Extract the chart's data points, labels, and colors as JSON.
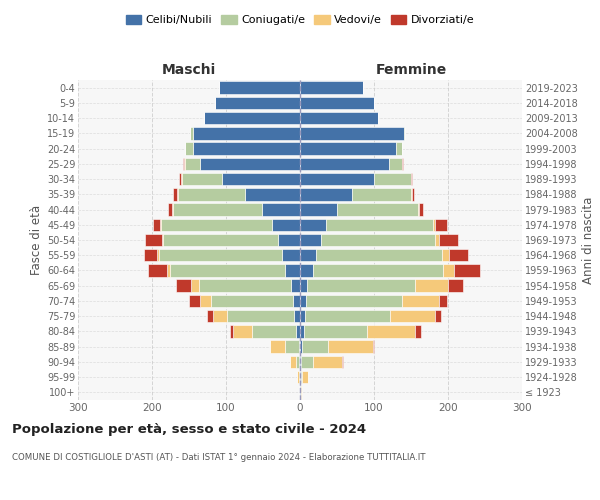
{
  "age_groups": [
    "100+",
    "95-99",
    "90-94",
    "85-89",
    "80-84",
    "75-79",
    "70-74",
    "65-69",
    "60-64",
    "55-59",
    "50-54",
    "45-49",
    "40-44",
    "35-39",
    "30-34",
    "25-29",
    "20-24",
    "15-19",
    "10-14",
    "5-9",
    "0-4"
  ],
  "birth_years": [
    "≤ 1923",
    "1924-1928",
    "1929-1933",
    "1934-1938",
    "1939-1943",
    "1944-1948",
    "1949-1953",
    "1954-1958",
    "1959-1963",
    "1964-1968",
    "1969-1973",
    "1974-1978",
    "1979-1983",
    "1984-1988",
    "1989-1993",
    "1994-1998",
    "1999-2003",
    "2004-2008",
    "2009-2013",
    "2014-2018",
    "2019-2023"
  ],
  "colors": {
    "celibi": "#4472a8",
    "coniugati": "#b5cca0",
    "vedovi": "#f5c97a",
    "divorziati": "#c0392b"
  },
  "males": {
    "celibi": [
      0,
      0,
      1,
      2,
      5,
      8,
      10,
      12,
      20,
      25,
      30,
      38,
      52,
      75,
      105,
      135,
      145,
      145,
      130,
      115,
      110
    ],
    "coniugati": [
      0,
      2,
      5,
      18,
      60,
      90,
      110,
      125,
      155,
      165,
      155,
      150,
      120,
      90,
      55,
      20,
      10,
      3,
      0,
      0,
      0
    ],
    "vedovi": [
      0,
      2,
      8,
      20,
      25,
      20,
      15,
      10,
      5,
      3,
      2,
      1,
      1,
      1,
      1,
      2,
      1,
      1,
      0,
      0,
      0
    ],
    "divorziati": [
      0,
      0,
      0,
      1,
      5,
      8,
      15,
      20,
      25,
      18,
      22,
      10,
      5,
      5,
      3,
      1,
      0,
      0,
      0,
      0,
      0
    ]
  },
  "females": {
    "celibi": [
      1,
      1,
      2,
      3,
      5,
      7,
      8,
      10,
      18,
      22,
      28,
      35,
      50,
      70,
      100,
      120,
      130,
      140,
      105,
      100,
      85
    ],
    "coniugati": [
      0,
      2,
      15,
      35,
      85,
      115,
      130,
      145,
      175,
      170,
      155,
      145,
      110,
      80,
      50,
      18,
      8,
      2,
      0,
      0,
      0
    ],
    "vedovi": [
      2,
      8,
      40,
      60,
      65,
      60,
      50,
      45,
      15,
      10,
      5,
      3,
      1,
      1,
      0,
      0,
      0,
      0,
      0,
      0,
      0
    ],
    "divorziati": [
      0,
      0,
      1,
      2,
      8,
      8,
      10,
      20,
      35,
      25,
      25,
      15,
      5,
      3,
      2,
      1,
      0,
      0,
      0,
      0,
      0
    ]
  },
  "xlim": 300,
  "title": "Popolazione per età, sesso e stato civile - 2024",
  "subtitle": "COMUNE DI COSTIGLIOLE D'ASTI (AT) - Dati ISTAT 1° gennaio 2024 - Elaborazione TUTTITALIA.IT",
  "xlabel_left": "Maschi",
  "xlabel_right": "Femmine",
  "ylabel_left": "Fasce di età",
  "ylabel_right": "Anni di nascita",
  "legend_labels": [
    "Celibi/Nubili",
    "Coniugati/e",
    "Vedovi/e",
    "Divorziati/e"
  ],
  "bg_color": "#ffffff",
  "grid_color": "#cccccc",
  "plot_bg": "#f7f7f7"
}
